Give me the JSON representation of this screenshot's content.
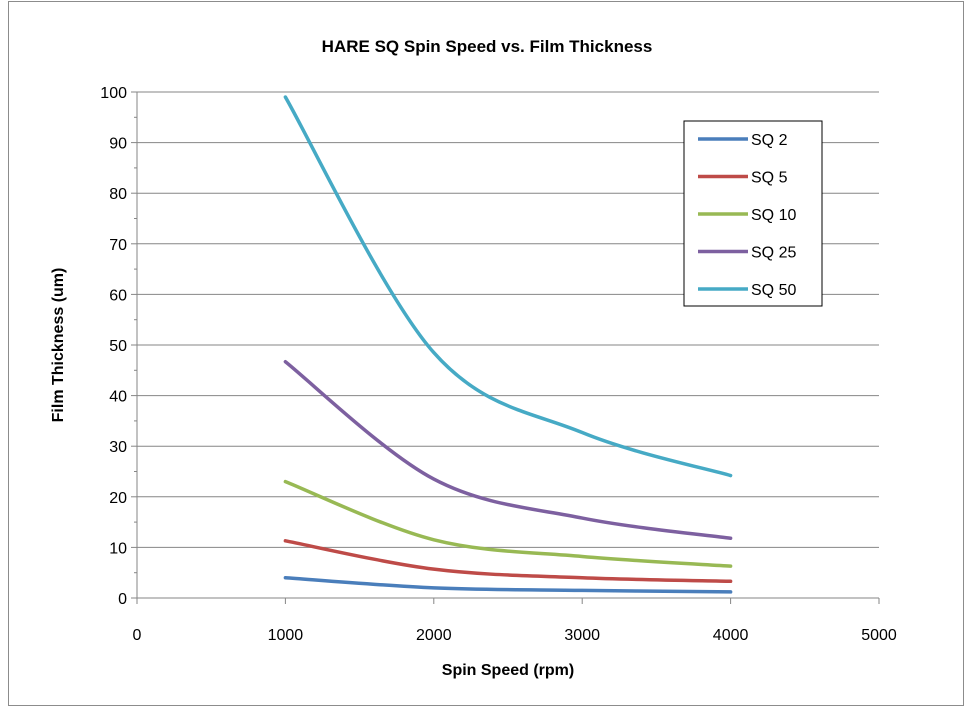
{
  "chart_data": {
    "type": "line",
    "title": "HARE SQ Spin Speed vs. Film Thickness",
    "xlabel": "Spin Speed (rpm)",
    "ylabel": "Film Thickness (um)",
    "xlim": [
      0,
      5000
    ],
    "ylim": [
      0,
      100
    ],
    "x_ticks": [
      0,
      1000,
      2000,
      3000,
      4000,
      5000
    ],
    "y_ticks": [
      0,
      10,
      20,
      30,
      40,
      50,
      60,
      70,
      80,
      90,
      100
    ],
    "grid": "horizontal",
    "legend_position": "top-right",
    "smooth": true,
    "series": [
      {
        "name": "SQ 2",
        "color": "#4a7ebb",
        "x": [
          1000,
          2000,
          3000,
          4000
        ],
        "y": [
          4,
          2,
          1.5,
          1.2
        ]
      },
      {
        "name": "SQ 5",
        "color": "#be4b48",
        "x": [
          1000,
          2000,
          3000,
          4000
        ],
        "y": [
          11.3,
          5.7,
          4.0,
          3.3
        ]
      },
      {
        "name": "SQ 10",
        "color": "#98b954",
        "x": [
          1000,
          2000,
          3000,
          4000
        ],
        "y": [
          23,
          11.5,
          8.2,
          6.3
        ]
      },
      {
        "name": "SQ 25",
        "color": "#7d60a0",
        "x": [
          1000,
          2000,
          3000,
          4000
        ],
        "y": [
          46.7,
          23.5,
          15.8,
          11.8
        ]
      },
      {
        "name": "SQ 50",
        "color": "#46aac5",
        "x": [
          1000,
          2000,
          3000,
          4000
        ],
        "y": [
          99,
          48.5,
          32.7,
          24.2
        ]
      }
    ]
  }
}
